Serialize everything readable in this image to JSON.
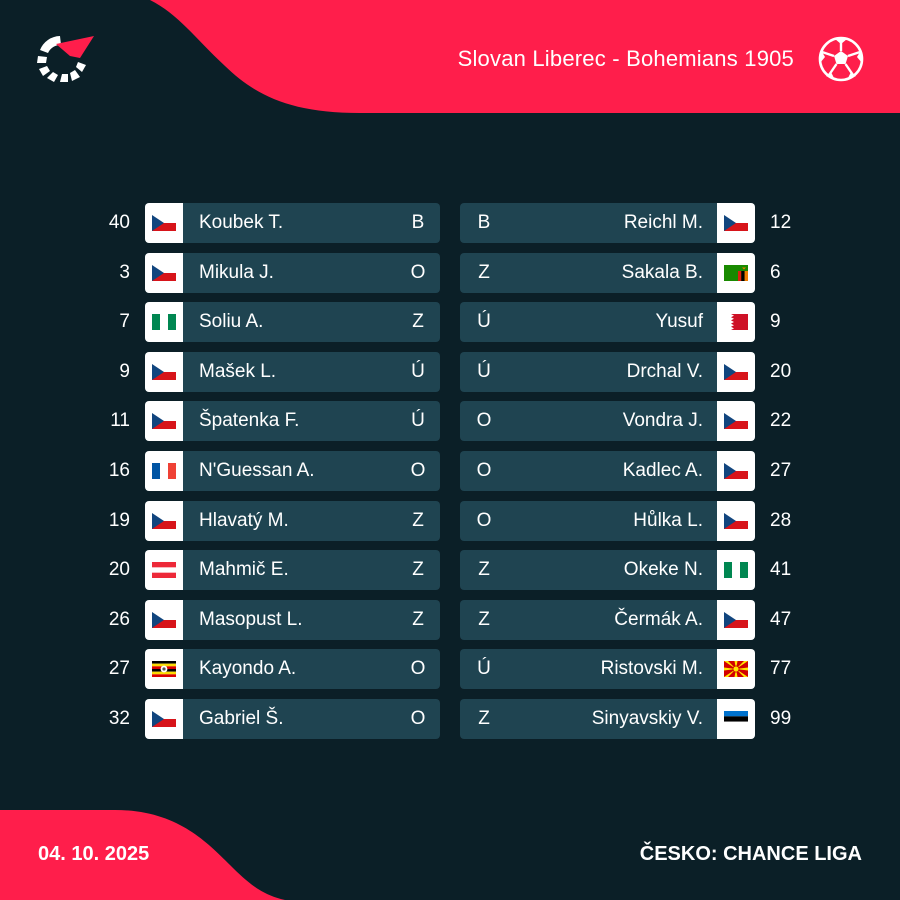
{
  "colors": {
    "background": "#0b1f27",
    "accent": "#ff1e4b",
    "card": "#1f4451"
  },
  "header": {
    "title": "Slovan Liberec - Bohemians 1905",
    "logo_icon": "flashscore-logo-icon",
    "sport_icon": "football-icon"
  },
  "home_lineup": [
    {
      "number": "40",
      "flag": "czech",
      "name": "Koubek T.",
      "position": "B"
    },
    {
      "number": "3",
      "flag": "czech",
      "name": "Mikula J.",
      "position": "O"
    },
    {
      "number": "7",
      "flag": "nigeria",
      "name": "Soliu A.",
      "position": "Z"
    },
    {
      "number": "9",
      "flag": "czech",
      "name": "Mašek L.",
      "position": "Ú"
    },
    {
      "number": "11",
      "flag": "czech",
      "name": "Špatenka F.",
      "position": "Ú"
    },
    {
      "number": "16",
      "flag": "france",
      "name": "N'Guessan A.",
      "position": "O"
    },
    {
      "number": "19",
      "flag": "czech",
      "name": "Hlavatý M.",
      "position": "Z"
    },
    {
      "number": "20",
      "flag": "austria",
      "name": "Mahmič E.",
      "position": "Z"
    },
    {
      "number": "26",
      "flag": "czech",
      "name": "Masopust L.",
      "position": "Z"
    },
    {
      "number": "27",
      "flag": "uganda",
      "name": "Kayondo A.",
      "position": "O"
    },
    {
      "number": "32",
      "flag": "czech",
      "name": "Gabriel Š.",
      "position": "O"
    }
  ],
  "away_lineup": [
    {
      "number": "12",
      "flag": "czech",
      "name": "Reichl M.",
      "position": "B"
    },
    {
      "number": "6",
      "flag": "zambia",
      "name": "Sakala B.",
      "position": "Z"
    },
    {
      "number": "9",
      "flag": "bahrain",
      "name": "Yusuf",
      "position": "Ú"
    },
    {
      "number": "20",
      "flag": "czech",
      "name": "Drchal V.",
      "position": "Ú"
    },
    {
      "number": "22",
      "flag": "czech",
      "name": "Vondra J.",
      "position": "O"
    },
    {
      "number": "27",
      "flag": "czech",
      "name": "Kadlec A.",
      "position": "O"
    },
    {
      "number": "28",
      "flag": "czech",
      "name": "Hůlka L.",
      "position": "O"
    },
    {
      "number": "41",
      "flag": "nigeria",
      "name": "Okeke N.",
      "position": "Z"
    },
    {
      "number": "47",
      "flag": "czech",
      "name": "Čermák A.",
      "position": "Z"
    },
    {
      "number": "77",
      "flag": "north-macedonia",
      "name": "Ristovski M.",
      "position": "Ú"
    },
    {
      "number": "99",
      "flag": "estonia",
      "name": "Sinyavskiy V.",
      "position": "Z"
    }
  ],
  "footer": {
    "date": "04. 10. 2025",
    "league": "ČESKO: CHANCE LIGA"
  }
}
